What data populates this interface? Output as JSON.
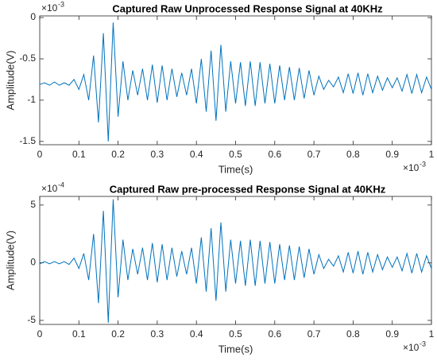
{
  "chart_data": [
    {
      "type": "line",
      "title": "Captured Raw Unprocessed Response Signal at 40KHz",
      "x_label": "Time(s)",
      "y_label": "Amplitude(V)",
      "x_multiplier": "×10",
      "x_exponent": "-3",
      "y_multiplier": "×10",
      "y_exponent": "-3",
      "xlim": [
        0,
        1
      ],
      "xticks": [
        0,
        0.1,
        0.2,
        0.3,
        0.4,
        0.5,
        0.6,
        0.7,
        0.8,
        0.9,
        1
      ],
      "ylim": [
        -1.54,
        0.02
      ],
      "yticks": [
        -1.5,
        -1,
        -0.5,
        0
      ],
      "x": [
        0,
        0.0125,
        0.025,
        0.0375,
        0.05,
        0.0625,
        0.075,
        0.0875,
        0.1,
        0.1125,
        0.125,
        0.1375,
        0.15,
        0.1625,
        0.175,
        0.1875,
        0.2,
        0.2125,
        0.225,
        0.2375,
        0.25,
        0.2625,
        0.275,
        0.2875,
        0.3,
        0.3125,
        0.325,
        0.3375,
        0.35,
        0.3625,
        0.375,
        0.3875,
        0.4,
        0.4125,
        0.425,
        0.4375,
        0.45,
        0.4625,
        0.475,
        0.4875,
        0.5,
        0.5125,
        0.525,
        0.5375,
        0.55,
        0.5625,
        0.575,
        0.5875,
        0.6,
        0.6125,
        0.625,
        0.6375,
        0.65,
        0.6625,
        0.675,
        0.6875,
        0.7,
        0.7125,
        0.725,
        0.7375,
        0.75,
        0.7625,
        0.775,
        0.7875,
        0.8,
        0.8125,
        0.825,
        0.8375,
        0.85,
        0.8625,
        0.875,
        0.8875,
        0.9,
        0.9125,
        0.925,
        0.9375,
        0.95,
        0.9625,
        0.975,
        0.9875,
        1
      ],
      "series": [
        {
          "color": "#0072bd",
          "values": [
            -0.81,
            -0.79,
            -0.82,
            -0.78,
            -0.82,
            -0.79,
            -0.82,
            -0.75,
            -0.87,
            -0.69,
            -1.0,
            -0.46,
            -1.27,
            -0.19,
            -1.5,
            -0.06,
            -1.2,
            -0.53,
            -1.0,
            -0.64,
            -0.94,
            -0.62,
            -1.0,
            -0.57,
            -1.03,
            -0.58,
            -1.0,
            -0.62,
            -0.96,
            -0.67,
            -0.94,
            -0.62,
            -1.04,
            -0.5,
            -1.14,
            -0.4,
            -1.25,
            -0.33,
            -1.14,
            -0.53,
            -1.04,
            -0.54,
            -1.07,
            -0.53,
            -1.07,
            -0.54,
            -1.04,
            -0.56,
            -1.04,
            -0.58,
            -1.0,
            -0.6,
            -1.0,
            -0.61,
            -0.98,
            -0.64,
            -0.94,
            -0.71,
            -0.87,
            -0.76,
            -0.84,
            -0.72,
            -0.91,
            -0.68,
            -0.92,
            -0.67,
            -0.94,
            -0.68,
            -0.91,
            -0.71,
            -0.88,
            -0.73,
            -0.85,
            -0.73,
            -0.89,
            -0.69,
            -0.92,
            -0.69,
            -0.91,
            -0.72,
            -0.87
          ]
        }
      ]
    },
    {
      "type": "line",
      "title": "Captured Raw pre-processed Response Signal at 40KHz",
      "x_label": "Time(s)",
      "y_label": "Amplitude(V)",
      "x_multiplier": "×10",
      "x_exponent": "-3",
      "y_multiplier": "×10",
      "y_exponent": "-4",
      "xlim": [
        0,
        1
      ],
      "xticks": [
        0,
        0.1,
        0.2,
        0.3,
        0.4,
        0.5,
        0.6,
        0.7,
        0.8,
        0.9,
        1
      ],
      "ylim": [
        -5.35,
        5.75
      ],
      "yticks": [
        -5,
        0,
        5
      ],
      "x": [
        0,
        0.0125,
        0.025,
        0.0375,
        0.05,
        0.0625,
        0.075,
        0.0875,
        0.1,
        0.1125,
        0.125,
        0.1375,
        0.15,
        0.1625,
        0.175,
        0.1875,
        0.2,
        0.2125,
        0.225,
        0.2375,
        0.25,
        0.2625,
        0.275,
        0.2875,
        0.3,
        0.3125,
        0.325,
        0.3375,
        0.35,
        0.3625,
        0.375,
        0.3875,
        0.4,
        0.4125,
        0.425,
        0.4375,
        0.45,
        0.4625,
        0.475,
        0.4875,
        0.5,
        0.5125,
        0.525,
        0.5375,
        0.55,
        0.5625,
        0.575,
        0.5875,
        0.6,
        0.6125,
        0.625,
        0.6375,
        0.65,
        0.6625,
        0.675,
        0.6875,
        0.7,
        0.7125,
        0.725,
        0.7375,
        0.75,
        0.7625,
        0.775,
        0.7875,
        0.8,
        0.8125,
        0.825,
        0.8375,
        0.85,
        0.8625,
        0.875,
        0.8875,
        0.9,
        0.9125,
        0.925,
        0.9375,
        0.95,
        0.9625,
        0.975,
        0.9875,
        1
      ],
      "series": [
        {
          "color": "#0072bd",
          "values": [
            -0.1,
            0.1,
            -0.1,
            0.1,
            -0.1,
            0.1,
            -0.15,
            0.4,
            -0.5,
            0.8,
            -1.5,
            2.5,
            -3.5,
            4.5,
            -5.2,
            5.5,
            -3,
            2,
            -1.5,
            1.2,
            -1,
            1.3,
            -1.5,
            1.7,
            -1.7,
            1.6,
            -1.5,
            1.3,
            -1.2,
            1,
            -1,
            1.3,
            -1.8,
            2.2,
            -2.5,
            3,
            -3.3,
            3.5,
            -2.5,
            2,
            -1.8,
            1.9,
            -2,
            2,
            -2,
            1.9,
            -1.8,
            1.8,
            -1.8,
            1.6,
            -1.5,
            1.5,
            -1.5,
            1.4,
            -1.3,
            1.2,
            -1,
            0.7,
            -0.5,
            0.3,
            -0.3,
            0.6,
            -0.8,
            0.9,
            -0.9,
            1,
            -1,
            0.9,
            -0.8,
            0.7,
            -0.6,
            0.5,
            -0.4,
            0.5,
            -0.7,
            0.8,
            -0.9,
            0.8,
            -0.8,
            0.6,
            -0.5
          ]
        }
      ]
    }
  ]
}
